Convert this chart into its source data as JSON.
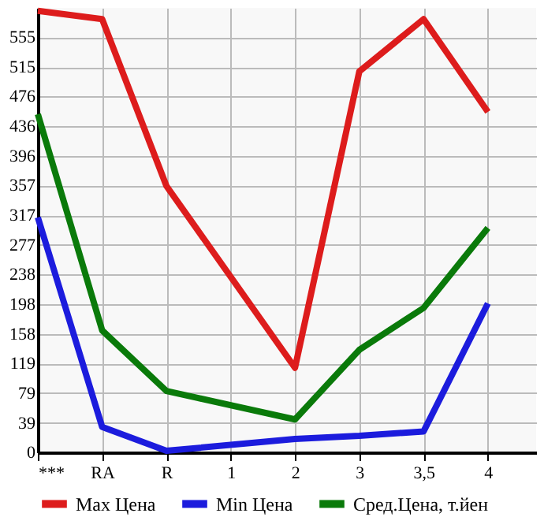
{
  "chart_data": {
    "type": "line",
    "categories": [
      "***",
      "RA",
      "R",
      "1",
      "2",
      "3",
      "3,5",
      "4"
    ],
    "series": [
      {
        "name": "Max Цена",
        "color": "#dd1c1c",
        "values": [
          590,
          579,
          356,
          null,
          113,
          509,
          579,
          455
        ]
      },
      {
        "name": "Min Цена",
        "color": "#1c1cdd",
        "values": [
          314,
          34,
          2,
          null,
          18,
          22,
          28,
          199
        ]
      },
      {
        "name": "Сред.Цена, т.йен",
        "color": "#0a7a0a",
        "values": [
          452,
          163,
          82,
          null,
          44,
          137,
          193,
          300
        ]
      }
    ],
    "ylim": [
      0,
      594
    ],
    "yticks": [
      0,
      39,
      79,
      119,
      158,
      198,
      238,
      277,
      317,
      357,
      396,
      436,
      476,
      515,
      555
    ],
    "grid": true,
    "legend": "bottom",
    "marker": "none",
    "line_style": "solid"
  }
}
